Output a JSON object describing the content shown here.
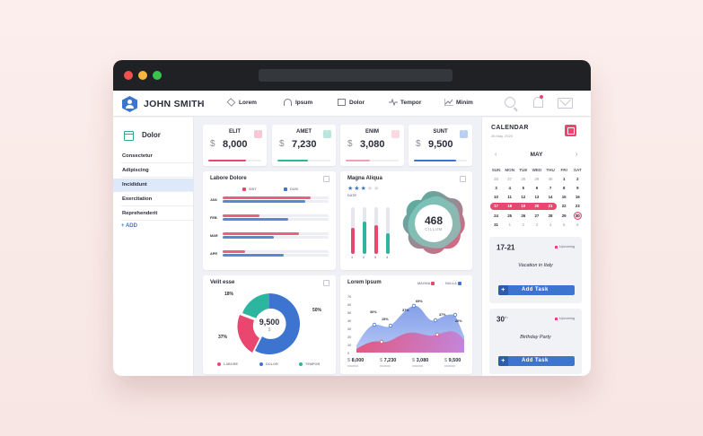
{
  "topnav": {
    "user_name": "JOHN SMITH",
    "items": [
      {
        "label": "Lorem",
        "icon": "cube-icon"
      },
      {
        "label": "Ipsum",
        "icon": "headphones-icon"
      },
      {
        "label": "Dolor",
        "icon": "document-icon"
      },
      {
        "label": "Tempor",
        "icon": "pulse-icon"
      },
      {
        "label": "Minim",
        "icon": "trend-chart-icon"
      }
    ]
  },
  "sidebar": {
    "title": "Dolor",
    "items": [
      {
        "label": "Consectetur"
      },
      {
        "label": "Adipiscing"
      },
      {
        "label": "Incididunt",
        "active": true
      },
      {
        "label": "Exercitation"
      },
      {
        "label": "Reprehenderit"
      }
    ],
    "add_label": "+ ADD"
  },
  "stats": [
    {
      "label": "ELIT",
      "currency": "$",
      "value": "8,000",
      "color": "#e9476f",
      "progress": 0.72
    },
    {
      "label": "AMET",
      "currency": "$",
      "value": "7,230",
      "color": "#2cb59f",
      "progress": 0.58
    },
    {
      "label": "ENIM",
      "currency": "$",
      "value": "3,080",
      "color": "#f2a0b8",
      "progress": 0.45
    },
    {
      "label": "SUNT",
      "currency": "$",
      "value": "9,500",
      "color": "#3d74cf",
      "progress": 0.8
    }
  ],
  "labore": {
    "title": "Labore Dolore",
    "legend": [
      "SINT",
      "DUIS"
    ],
    "rows": [
      {
        "label": "JAN",
        "pink": 0.83,
        "blue": 0.78
      },
      {
        "label": "FEB",
        "pink": 0.35,
        "blue": 0.62
      },
      {
        "label": "MAR",
        "pink": 0.72,
        "blue": 0.48
      },
      {
        "label": "APR",
        "pink": 0.21,
        "blue": 0.58
      }
    ]
  },
  "magna": {
    "title": "Magna Aliqua",
    "rating": 3,
    "rating_max": 5,
    "rating_caption": "DATE",
    "bars": [
      {
        "label": "1",
        "level": 0.55,
        "color": "#e9476f"
      },
      {
        "label": "2",
        "level": 0.7,
        "color": "#2cb59f"
      },
      {
        "label": "3",
        "level": 0.62,
        "color": "#e9476f"
      },
      {
        "label": "4",
        "level": 0.45,
        "color": "#2cb59f"
      }
    ],
    "big_value": "468",
    "big_caption": "CILLUM"
  },
  "velit": {
    "title": "Velit esse",
    "center_value": "9,500",
    "center_unit": "$",
    "labels": {
      "a": "18%",
      "b": "50%",
      "c": "37%"
    },
    "legend": [
      {
        "label": "LABORE",
        "color": "#e9476f"
      },
      {
        "label": "DOLOR",
        "color": "#3d74cf"
      },
      {
        "label": "TEMPOR",
        "color": "#2cb59f"
      }
    ]
  },
  "lorem": {
    "title": "Lorem Ipsum",
    "legend": [
      "MAGNA",
      "NULLA"
    ],
    "y_ticks": [
      "70",
      "60",
      "50",
      "40",
      "30",
      "20",
      "10",
      "0"
    ],
    "annotations": [
      "30%",
      "15%",
      "37%",
      "69%",
      "37%",
      "20%"
    ],
    "footer": [
      {
        "currency": "$",
        "value": "8,000"
      },
      {
        "currency": "$",
        "value": "7,230"
      },
      {
        "currency": "$",
        "value": "3,080"
      },
      {
        "currency": "$",
        "value": "9,500"
      }
    ]
  },
  "calendar": {
    "title": "CALENDAR",
    "date_caption": "26 May, 2020",
    "month": "MAY",
    "weekdays": [
      "SUN",
      "MON",
      "TUE",
      "WED",
      "THU",
      "FRI",
      "SAT"
    ],
    "weeks": [
      [
        "26",
        "27",
        "28",
        "29",
        "30",
        "1",
        "2"
      ],
      [
        "3",
        "4",
        "5",
        "6",
        "7",
        "8",
        "9"
      ],
      [
        "10",
        "11",
        "12",
        "13",
        "14",
        "15",
        "16"
      ],
      [
        "17",
        "18",
        "19",
        "20",
        "21",
        "22",
        "23"
      ],
      [
        "24",
        "25",
        "26",
        "27",
        "28",
        "29",
        "30"
      ],
      [
        "31",
        "1",
        "2",
        "3",
        "4",
        "5",
        "6"
      ]
    ],
    "muted": {
      "0": [
        0,
        1,
        2,
        3,
        4
      ],
      "5": [
        1,
        2,
        3,
        4,
        5,
        6
      ]
    },
    "selected_range": {
      "week": 3,
      "from": 0,
      "to": 4
    },
    "today": {
      "week": 4,
      "day": 6
    }
  },
  "tasks": [
    {
      "date": "17-21",
      "date_sup": "",
      "badge": "Upcoming",
      "desc": "Vacation in Italy",
      "button": "Add Task"
    },
    {
      "date": "30",
      "date_sup": "th",
      "badge": "Upcoming",
      "desc": "Birthday Party",
      "button": "Add Task"
    }
  ],
  "colors": {
    "pink": "#e9476f",
    "blue": "#3d74cf",
    "teal": "#2cb59f"
  }
}
